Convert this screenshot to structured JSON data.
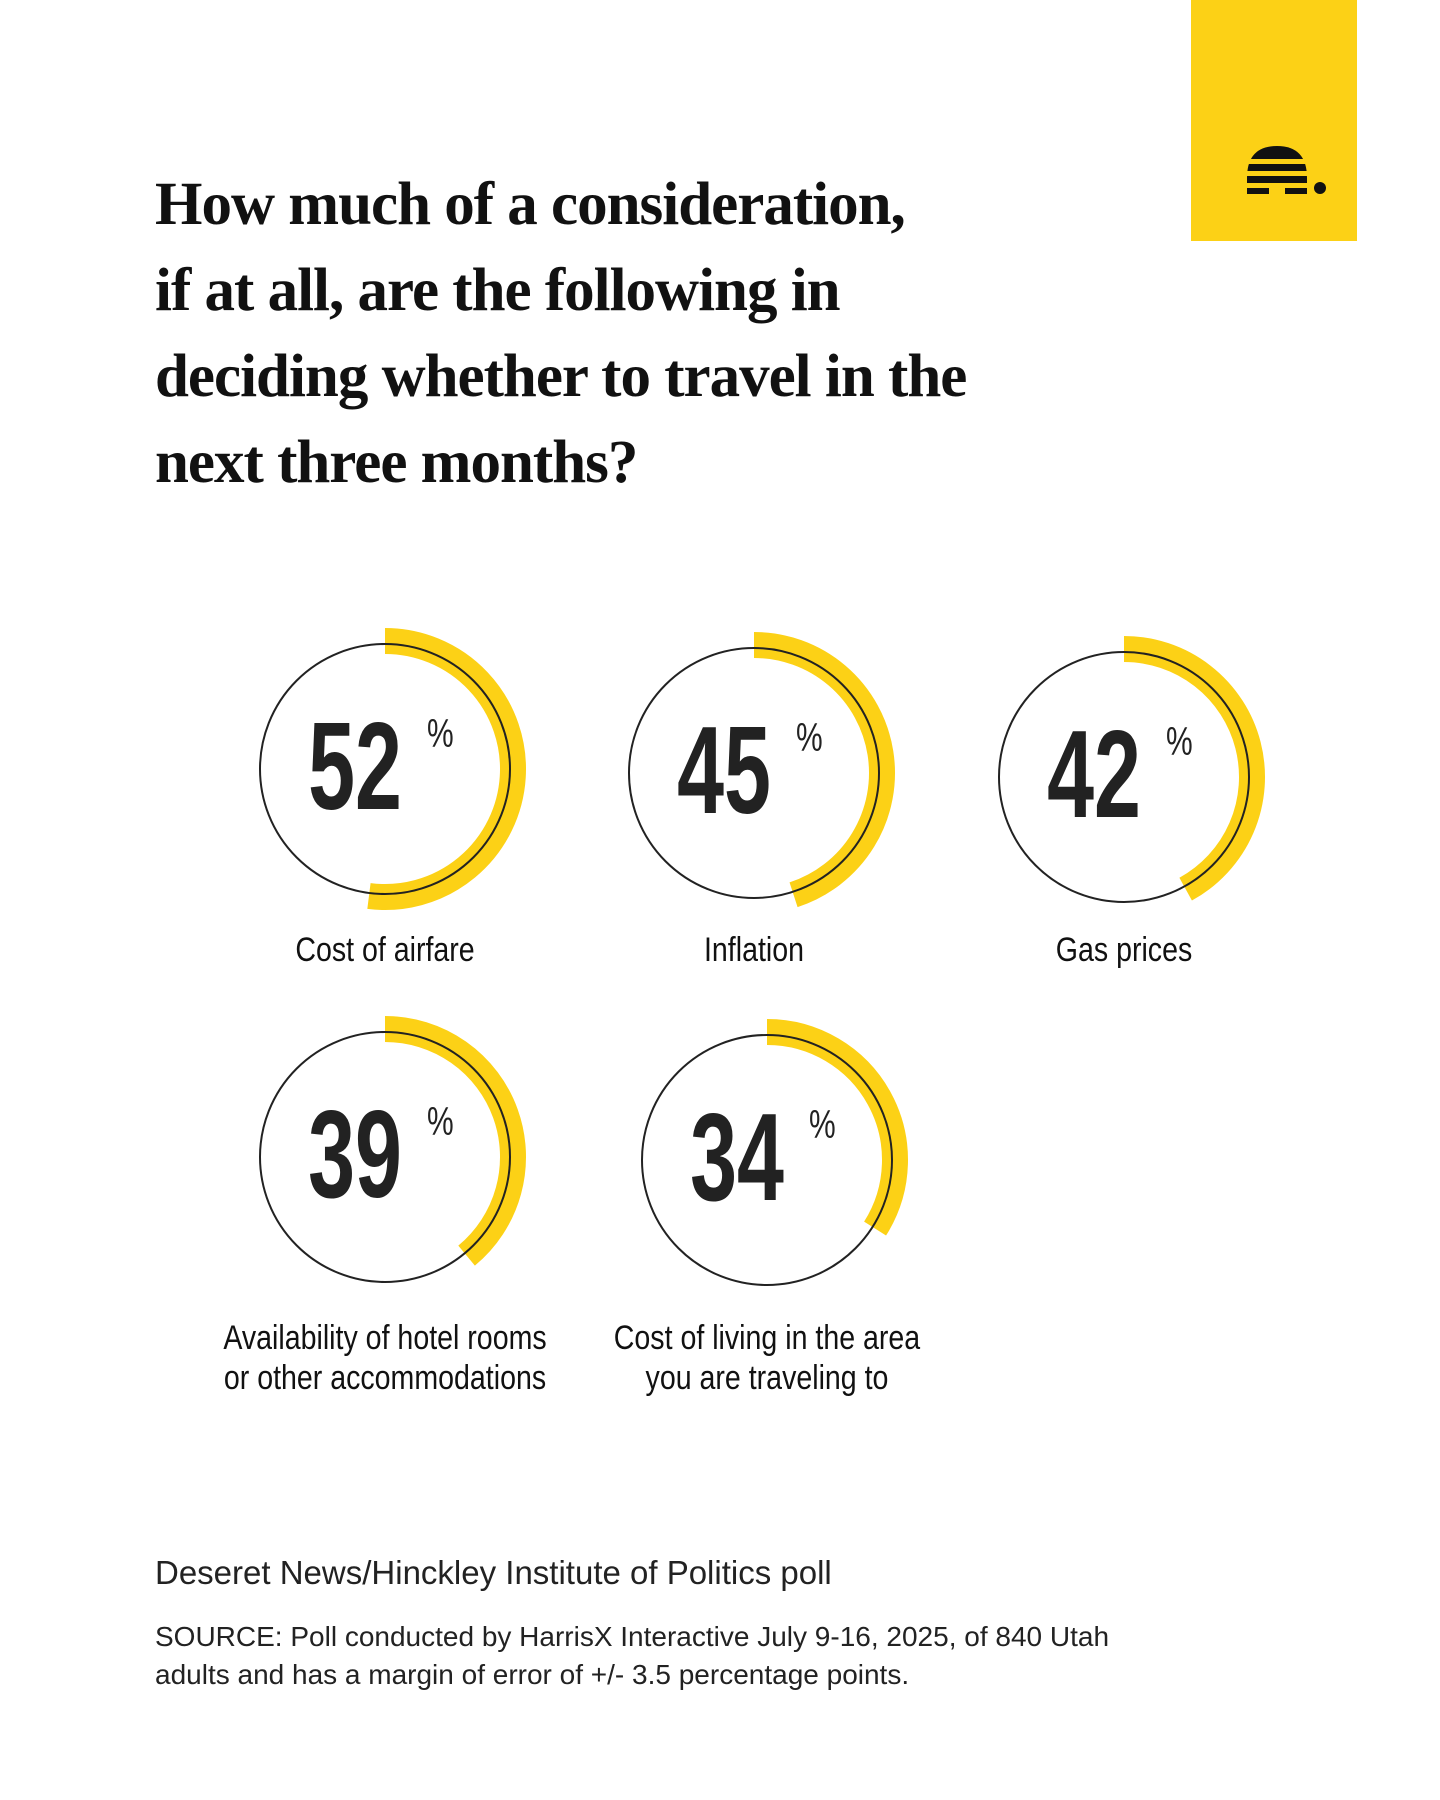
{
  "chart_data": {
    "type": "radial-gauge",
    "title": "How much of a consideration,\nif at all, are the following in\ndeciding whether to travel in the\nnext three months?",
    "categories": [
      "Cost of airfare",
      "Inflation",
      "Gas prices",
      "Availability of hotel rooms\nor other accommodations",
      "Cost of living in the area\nyou are traveling to"
    ],
    "values": [
      52,
      45,
      42,
      39,
      34
    ],
    "unit": "%",
    "ylim": [
      0,
      100
    ],
    "color": "#fcd116",
    "subtitle": "Deseret News/Hinckley Institute of Politics poll",
    "source": "SOURCE: Poll conducted by HarrisX Interactive July 9-16, 2025, of 840 Utah\nadults and has a margin of error of +/- 3.5 percentage points."
  }
}
